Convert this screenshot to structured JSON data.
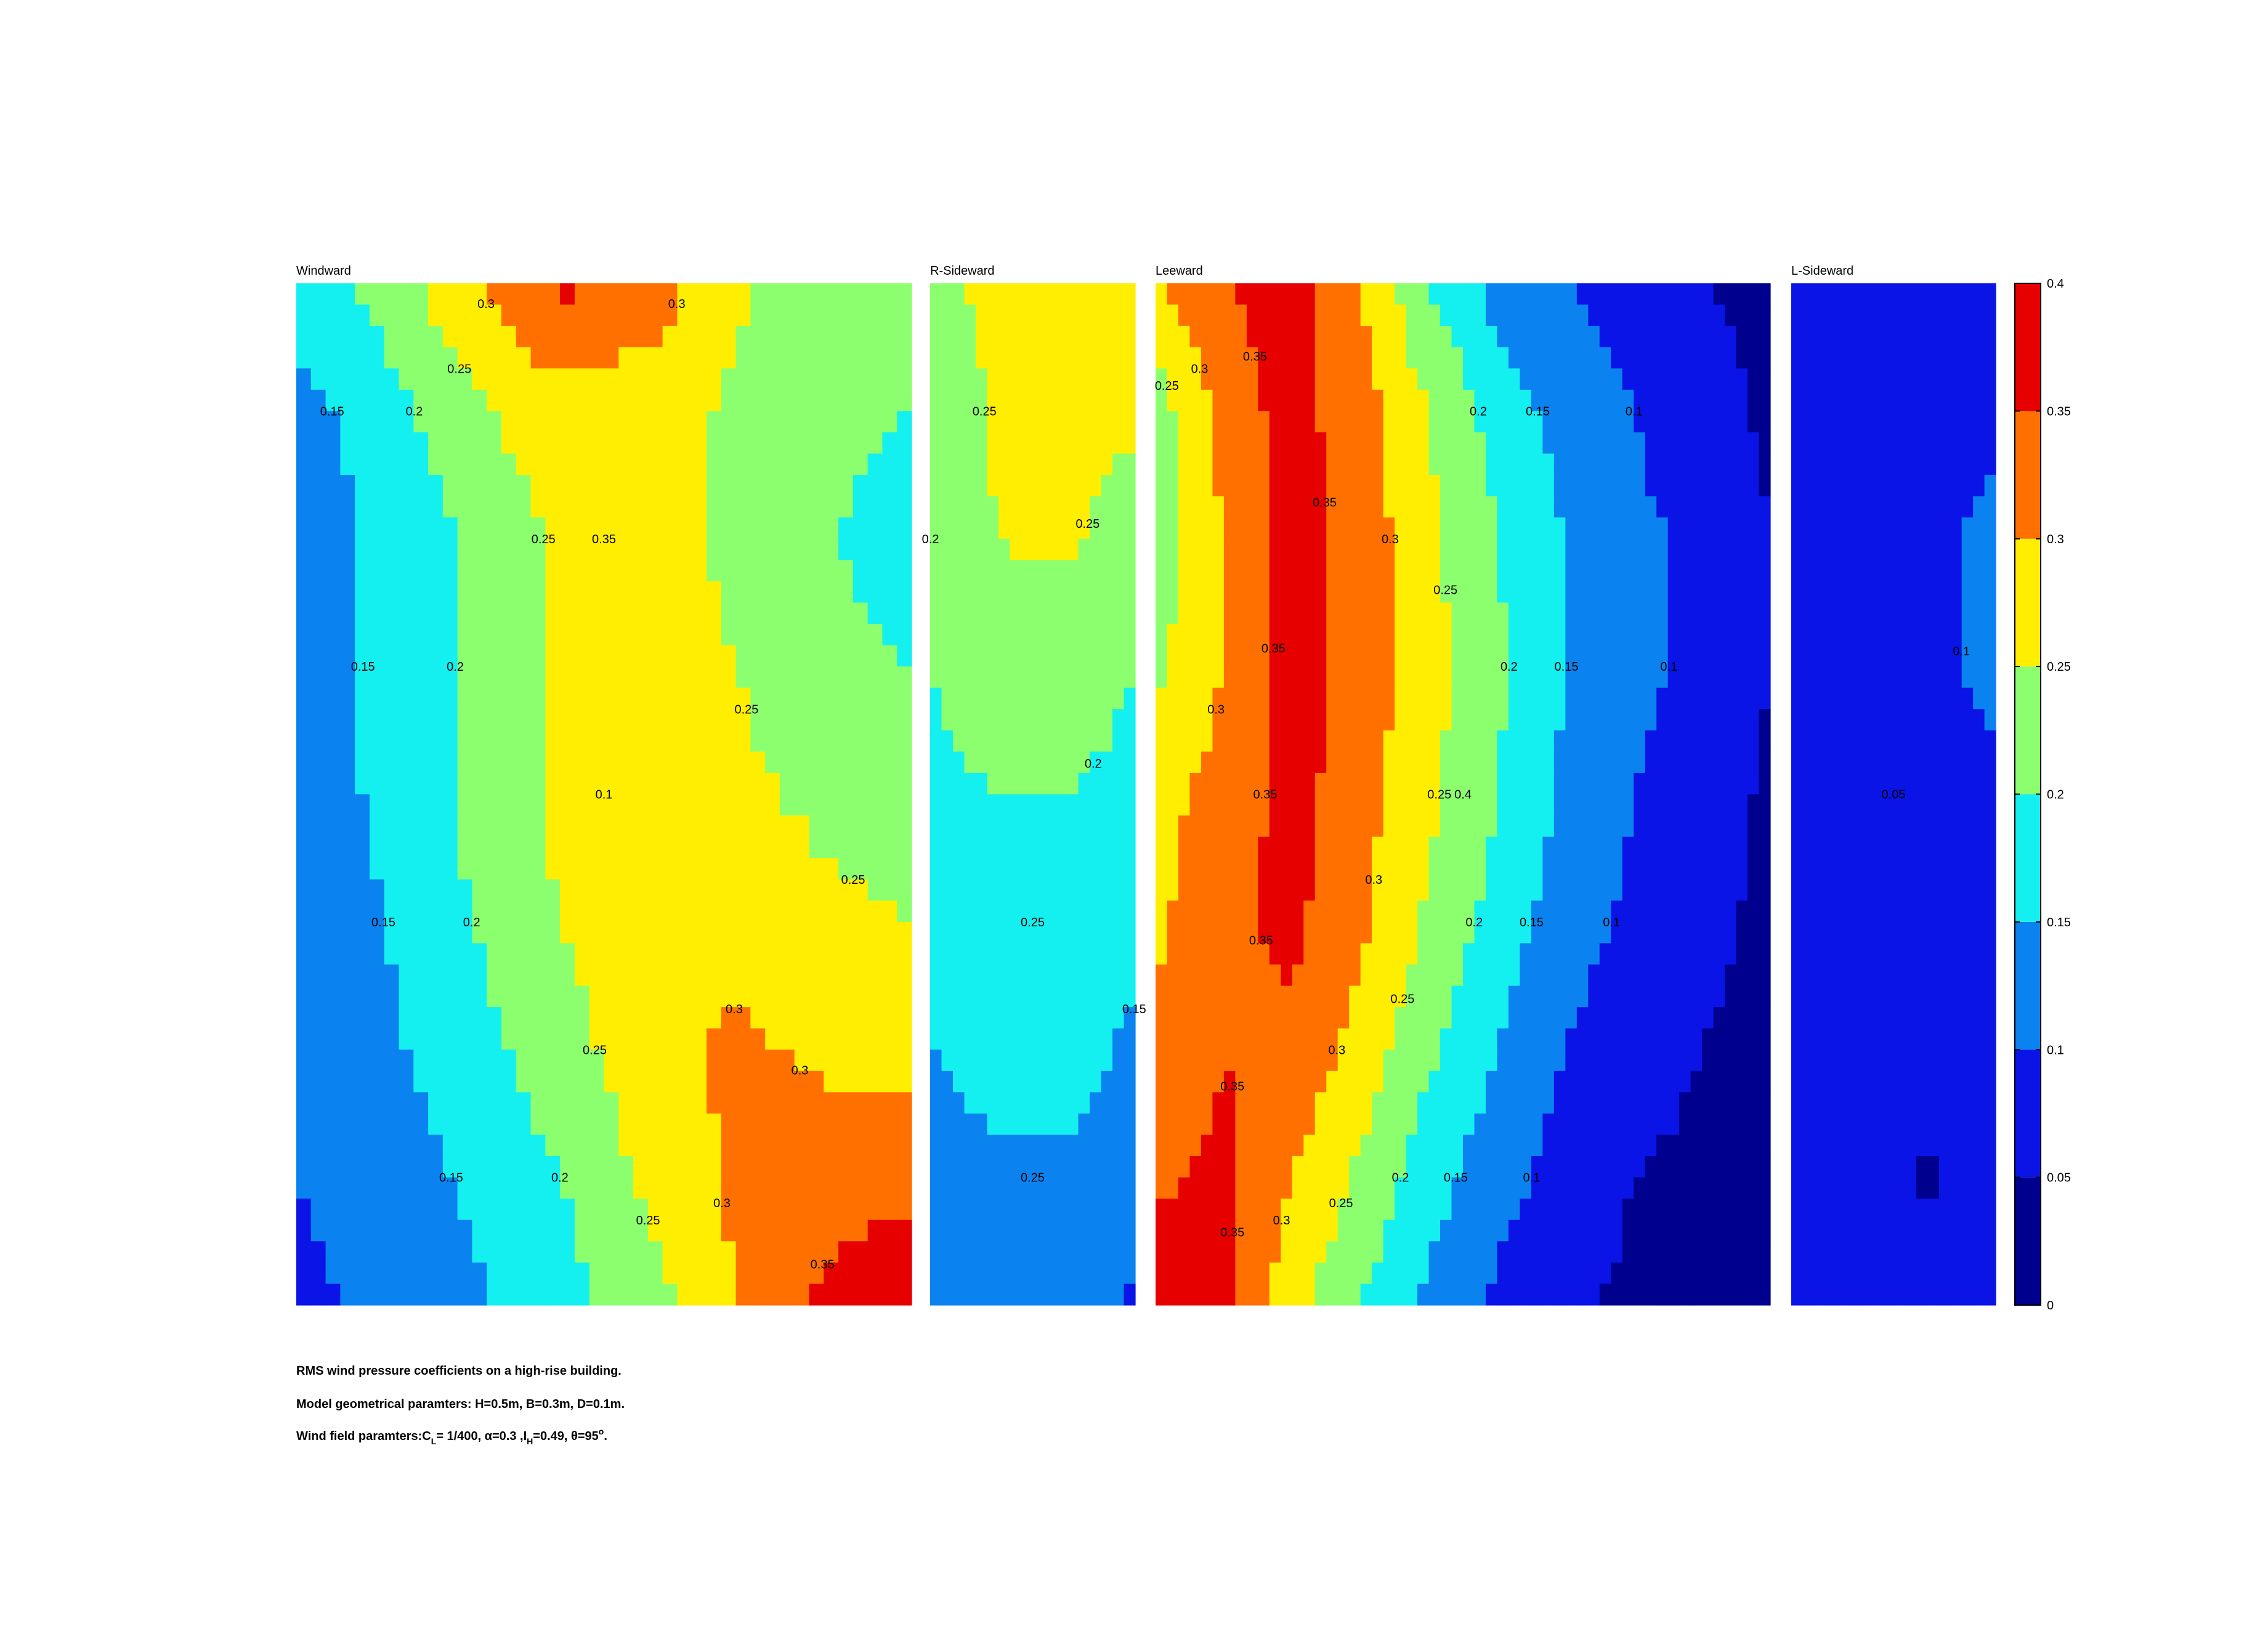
{
  "chart_data": {
    "type": "contour",
    "panels": [
      {
        "title": "Windward",
        "z": [
          [
            0.18,
            0.22,
            0.3,
            0.36,
            0.33,
            0.26,
            0.22,
            0.21
          ],
          [
            0.13,
            0.18,
            0.24,
            0.28,
            0.27,
            0.24,
            0.22,
            0.2
          ],
          [
            0.12,
            0.16,
            0.21,
            0.26,
            0.27,
            0.24,
            0.21,
            0.16
          ],
          [
            0.12,
            0.16,
            0.21,
            0.26,
            0.27,
            0.25,
            0.22,
            0.2
          ],
          [
            0.12,
            0.16,
            0.21,
            0.26,
            0.27,
            0.26,
            0.24,
            0.23
          ],
          [
            0.12,
            0.15,
            0.2,
            0.25,
            0.28,
            0.28,
            0.26,
            0.25
          ],
          [
            0.11,
            0.14,
            0.18,
            0.23,
            0.28,
            0.31,
            0.29,
            0.28
          ],
          [
            0.1,
            0.12,
            0.16,
            0.2,
            0.26,
            0.31,
            0.33,
            0.33
          ],
          [
            0.09,
            0.11,
            0.14,
            0.18,
            0.23,
            0.3,
            0.36,
            0.4
          ]
        ],
        "contour_labels": [
          0.3,
          0.35,
          0.3,
          0.2,
          0.25,
          0.25,
          0.15,
          0.2,
          0.25,
          0.25,
          0.15,
          0.2,
          0.25,
          0.15,
          0.3,
          0.2,
          0.25,
          0.3,
          0.3,
          0.1,
          0.15,
          0.35
        ]
      },
      {
        "title": "R-Sideward",
        "z": [
          [
            0.24,
            0.26,
            0.27,
            0.26
          ],
          [
            0.21,
            0.26,
            0.27,
            0.26
          ],
          [
            0.2,
            0.25,
            0.26,
            0.22
          ],
          [
            0.2,
            0.23,
            0.22,
            0.2
          ],
          [
            0.19,
            0.2,
            0.2,
            0.19
          ],
          [
            0.17,
            0.19,
            0.19,
            0.17
          ],
          [
            0.15,
            0.17,
            0.17,
            0.14
          ],
          [
            0.13,
            0.14,
            0.14,
            0.12
          ],
          [
            0.1,
            0.14,
            0.13,
            0.09
          ]
        ],
        "contour_labels": [
          0.25,
          0.25,
          0.25,
          0.25,
          0.2,
          0.2,
          0.15
        ]
      },
      {
        "title": "Leeward",
        "z": [
          [
            0.3,
            0.35,
            0.37,
            0.3,
            0.2,
            0.13,
            0.1,
            0.08,
            0.05,
            0.04
          ],
          [
            0.22,
            0.32,
            0.37,
            0.32,
            0.25,
            0.18,
            0.13,
            0.1,
            0.07,
            0.04
          ],
          [
            0.22,
            0.3,
            0.37,
            0.33,
            0.26,
            0.2,
            0.15,
            0.11,
            0.09,
            0.05
          ],
          [
            0.24,
            0.3,
            0.37,
            0.33,
            0.27,
            0.21,
            0.15,
            0.11,
            0.09,
            0.05
          ],
          [
            0.28,
            0.32,
            0.37,
            0.32,
            0.26,
            0.2,
            0.14,
            0.1,
            0.08,
            0.04
          ],
          [
            0.29,
            0.34,
            0.36,
            0.31,
            0.24,
            0.18,
            0.12,
            0.09,
            0.06,
            0.04
          ],
          [
            0.31,
            0.35,
            0.34,
            0.28,
            0.21,
            0.15,
            0.1,
            0.07,
            0.05,
            0.04
          ],
          [
            0.34,
            0.36,
            0.3,
            0.24,
            0.17,
            0.12,
            0.08,
            0.05,
            0.04,
            0.04
          ],
          [
            0.38,
            0.36,
            0.27,
            0.2,
            0.14,
            0.09,
            0.06,
            0.04,
            0.04,
            0.04
          ]
        ],
        "contour_labels": [
          0.35,
          0.3,
          0.25,
          0.2,
          0.15,
          0.1,
          0.25,
          0.3,
          0.35,
          0.35,
          0.3,
          0.25,
          0.2,
          0.15,
          0.1,
          0.3,
          0.35,
          0.35,
          0.3,
          0.25,
          0.2,
          0.15,
          0.1,
          0.35,
          0.4,
          0.35,
          0.3,
          0.25,
          0.2,
          0.15,
          0.1
        ]
      },
      {
        "title": "L-Sideward",
        "z": [
          [
            0.08,
            0.08,
            0.08,
            0.09
          ],
          [
            0.08,
            0.08,
            0.09,
            0.09
          ],
          [
            0.08,
            0.08,
            0.09,
            0.11
          ],
          [
            0.08,
            0.08,
            0.09,
            0.11
          ],
          [
            0.08,
            0.08,
            0.08,
            0.09
          ],
          [
            0.08,
            0.08,
            0.08,
            0.08
          ],
          [
            0.08,
            0.08,
            0.08,
            0.08
          ],
          [
            0.08,
            0.08,
            0.04,
            0.08
          ],
          [
            0.08,
            0.08,
            0.08,
            0.08
          ]
        ],
        "contour_labels": [
          0.1,
          0.05
        ]
      }
    ],
    "clim": [
      0,
      0.4
    ],
    "cticks": [
      0,
      0.05,
      0.1,
      0.15,
      0.2,
      0.25,
      0.3,
      0.35,
      0.4
    ],
    "colors": [
      "#00008f",
      "#0a14e6",
      "#0a82f0",
      "#14f0f0",
      "#8cff6e",
      "#ffee00",
      "#ff7000",
      "#e60000",
      "#800000"
    ]
  },
  "caption": {
    "line1": "RMS wind pressure coefficients on a high-rise building.",
    "line2": "Model geometrical paramters: H=0.5m, B=0.3m, D=0.1m.",
    "line3": [
      {
        "text": "Wind field paramters:C"
      },
      {
        "text": "L",
        "script": "sub"
      },
      {
        "text": "= 1/400, α=0.3 ,I"
      },
      {
        "text": "H",
        "script": "sub"
      },
      {
        "text": "=0.49, θ=95"
      },
      {
        "text": "o",
        "script": "sup"
      },
      {
        "text": "."
      }
    ]
  }
}
